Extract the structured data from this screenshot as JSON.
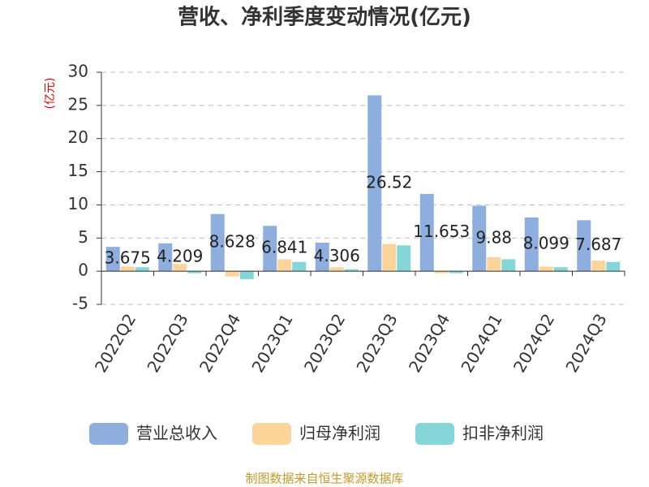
{
  "chart_data": {
    "type": "bar",
    "title": "营收、净利季度变动情况(亿元)",
    "y_axis_label": "(亿元)",
    "categories": [
      "2022Q2",
      "2022Q3",
      "2022Q4",
      "2023Q1",
      "2023Q2",
      "2023Q3",
      "2023Q4",
      "2024Q1",
      "2024Q2",
      "2024Q3"
    ],
    "series": [
      {
        "name": "营业总收入",
        "color": "#8eaede",
        "values": [
          3.675,
          4.209,
          8.628,
          6.841,
          4.306,
          26.52,
          11.653,
          9.88,
          8.099,
          7.687
        ],
        "show_labels": true
      },
      {
        "name": "归母净利润",
        "color": "#fdd49a",
        "values": [
          0.7,
          1.1,
          -0.8,
          1.8,
          0.6,
          4.1,
          -0.3,
          2.1,
          0.7,
          1.6
        ]
      },
      {
        "name": "扣非净利润",
        "color": "#84d6d8",
        "values": [
          0.6,
          -0.3,
          -1.2,
          1.4,
          0.3,
          3.9,
          -0.3,
          1.8,
          0.6,
          1.4
        ]
      }
    ],
    "ylim": [
      -5,
      30
    ],
    "yticks": [
      -5,
      0,
      5,
      10,
      15,
      20,
      25,
      30
    ],
    "grid": true,
    "legend": "bottom",
    "source": "制图数据来自恒生聚源数据库"
  }
}
